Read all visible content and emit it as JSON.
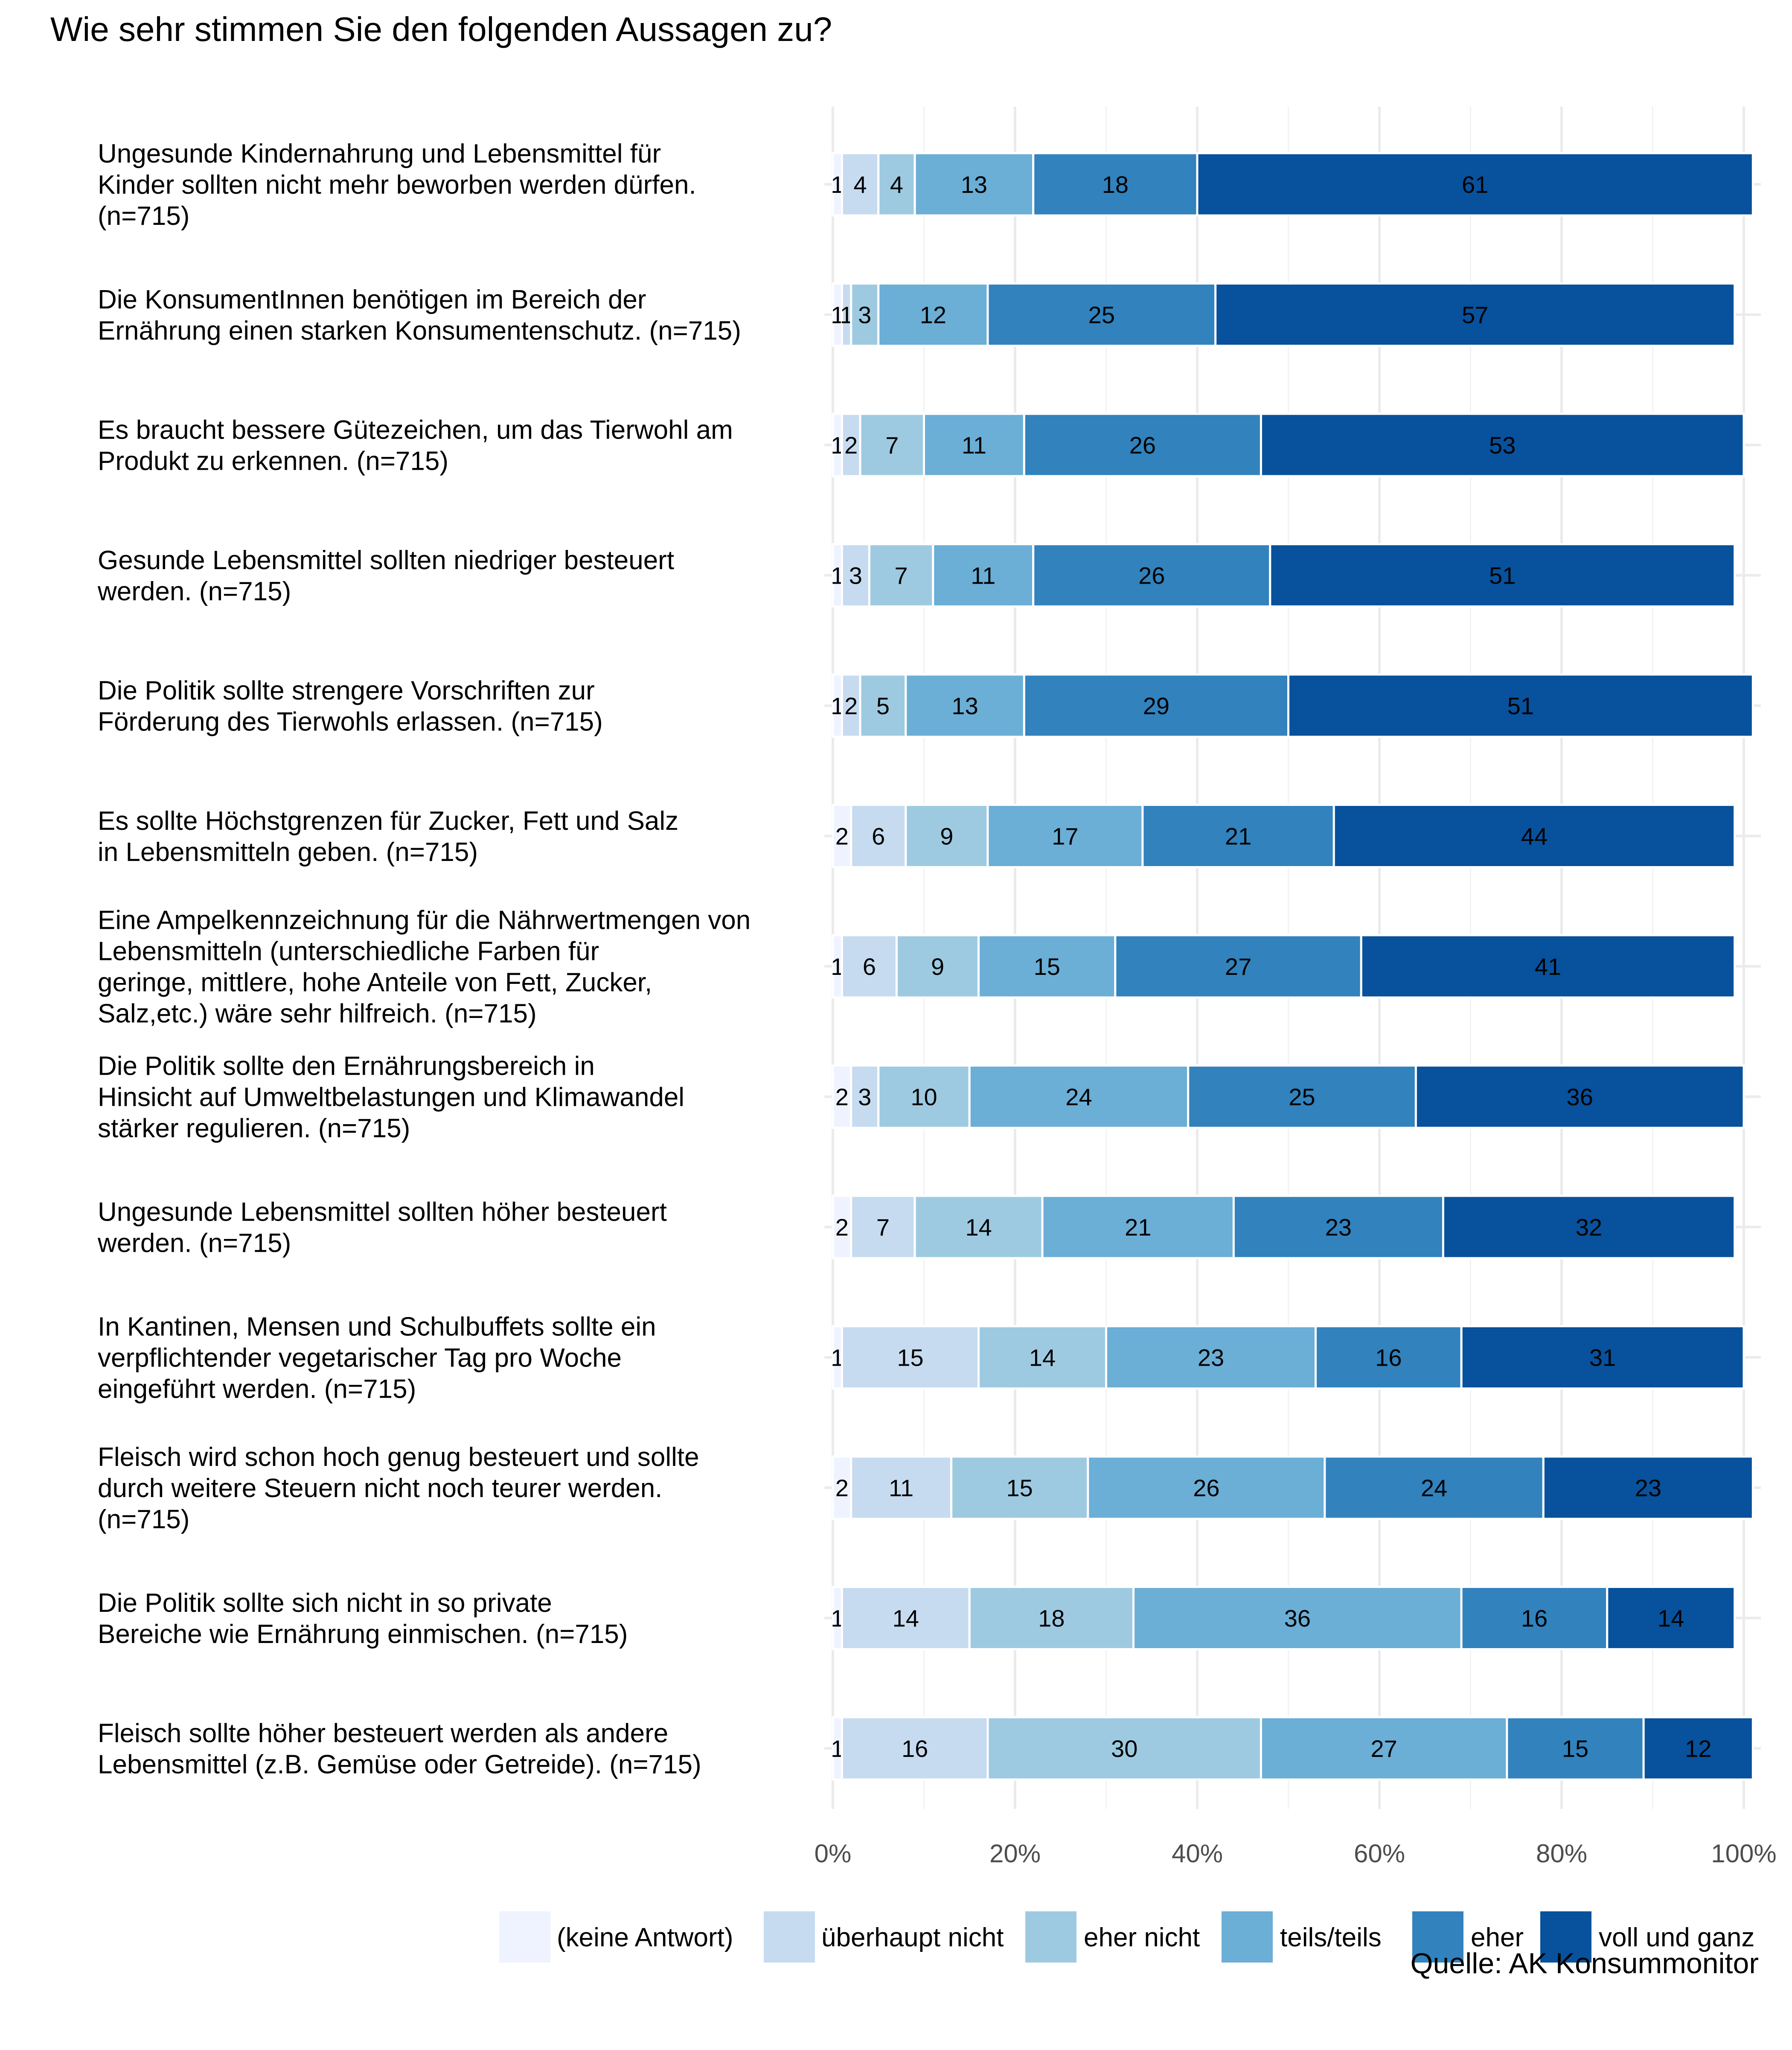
{
  "chart_data": {
    "type": "bar",
    "orientation": "horizontal",
    "stacked": true,
    "title": "Wie sehr stimmen Sie den folgenden Aussagen zu?",
    "source": "Quelle: AK Konsummonitor",
    "xlabel": "",
    "ylabel": "",
    "xlim": [
      0,
      100
    ],
    "x_ticks": [
      0,
      20,
      40,
      60,
      80,
      100
    ],
    "x_tick_labels": [
      "0%",
      "20%",
      "40%",
      "60%",
      "80%",
      "100%"
    ],
    "grid": true,
    "legend_position": "bottom-right",
    "categories": [
      [
        "Ungesunde Kindernahrung und Lebensmittel für",
        "Kinder sollten nicht mehr beworben werden dürfen.",
        "(n=715)"
      ],
      [
        "Die KonsumentInnen benötigen im Bereich der",
        "Ernährung einen starken Konsumentenschutz. (n=715)"
      ],
      [
        "Es braucht bessere Gütezeichen, um das Tierwohl am",
        "Produkt zu erkennen. (n=715)"
      ],
      [
        "Gesunde Lebensmittel sollten niedriger besteuert",
        "werden. (n=715)"
      ],
      [
        "Die Politik sollte strengere Vorschriften zur",
        "Förderung des Tierwohls erlassen. (n=715)"
      ],
      [
        "Es sollte Höchstgrenzen für Zucker, Fett und Salz",
        "in Lebensmitteln geben. (n=715)"
      ],
      [
        "Eine Ampelkennzeichnung für die Nährwertmengen von",
        "Lebensmitteln (unterschiedliche Farben für",
        "geringe, mittlere, hohe Anteile von Fett, Zucker,",
        "Salz,etc.) wäre sehr hilfreich. (n=715)"
      ],
      [
        "Die Politik sollte den Ernährungsbereich in",
        "Hinsicht auf Umweltbelastungen und Klimawandel",
        "stärker regulieren. (n=715)"
      ],
      [
        "Ungesunde Lebensmittel sollten höher besteuert",
        "werden. (n=715)"
      ],
      [
        "In Kantinen, Mensen und Schulbuffets sollte ein",
        "verpflichtender vegetarischer Tag pro Woche",
        "eingeführt werden. (n=715)"
      ],
      [
        "Fleisch wird schon hoch genug besteuert und sollte",
        "durch weitere Steuern nicht noch teurer werden.",
        "(n=715)"
      ],
      [
        "Die Politik sollte sich nicht in so private",
        "Bereiche wie Ernährung einmischen. (n=715)"
      ],
      [
        "Fleisch sollte höher besteuert werden als andere",
        "Lebensmittel (z.B. Gemüse oder Getreide). (n=715)"
      ]
    ],
    "series": [
      {
        "name": "(keine Antwort)",
        "color": "#eff3ff",
        "values": [
          1,
          1,
          1,
          1,
          1,
          2,
          1,
          2,
          2,
          1,
          2,
          1,
          1
        ]
      },
      {
        "name": "überhaupt nicht",
        "color": "#c6dbef",
        "values": [
          4,
          1,
          2,
          3,
          2,
          6,
          6,
          3,
          7,
          15,
          11,
          14,
          16
        ]
      },
      {
        "name": "eher nicht",
        "color": "#9ecae1",
        "values": [
          4,
          3,
          7,
          7,
          5,
          9,
          9,
          10,
          14,
          14,
          15,
          18,
          30
        ]
      },
      {
        "name": "teils/teils",
        "color": "#6baed6",
        "values": [
          13,
          12,
          11,
          11,
          13,
          17,
          15,
          24,
          21,
          23,
          26,
          36,
          27
        ]
      },
      {
        "name": "eher",
        "color": "#3182bd",
        "values": [
          18,
          25,
          26,
          26,
          29,
          21,
          27,
          25,
          23,
          16,
          24,
          16,
          15
        ]
      },
      {
        "name": "voll und ganz",
        "color": "#08519c",
        "values": [
          61,
          57,
          53,
          51,
          51,
          44,
          41,
          36,
          32,
          31,
          23,
          14,
          12
        ]
      }
    ]
  }
}
